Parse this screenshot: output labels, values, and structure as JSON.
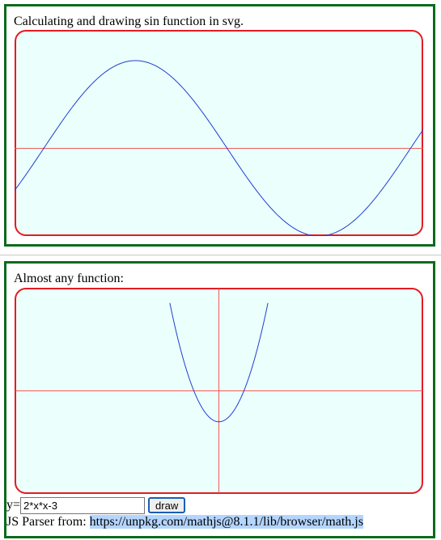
{
  "panel1": {
    "title": "Calculating and drawing sin function in svg.",
    "plot": {
      "function": "sin(x)",
      "x_range": [
        -0.5,
        6.5
      ],
      "y_range": [
        -1.0,
        1.35
      ],
      "background": "#ebfffc",
      "border_color": "#e31b23",
      "curve_color": "#1f3fd1",
      "axis_color": "#f05a5a"
    }
  },
  "panel2": {
    "title": "Almost any function:",
    "plot": {
      "function": "2*x*x-3",
      "x_range": [
        -10,
        10
      ],
      "y_range": [
        -10,
        10
      ],
      "background": "#ebfffc",
      "border_color": "#e31b23",
      "curve_color": "#1f3fd1",
      "axis_color": "#f05a5a"
    },
    "input_prefix": "y=",
    "input_value": "2*x*x-3",
    "draw_label": "draw",
    "parser_label": "JS Parser from: ",
    "parser_url": "https://unpkg.com/mathjs@8.1.1/lib/browser/math.js"
  },
  "colors": {
    "panel_border": "#0b6b1c",
    "selection": "#b4d5fe"
  }
}
